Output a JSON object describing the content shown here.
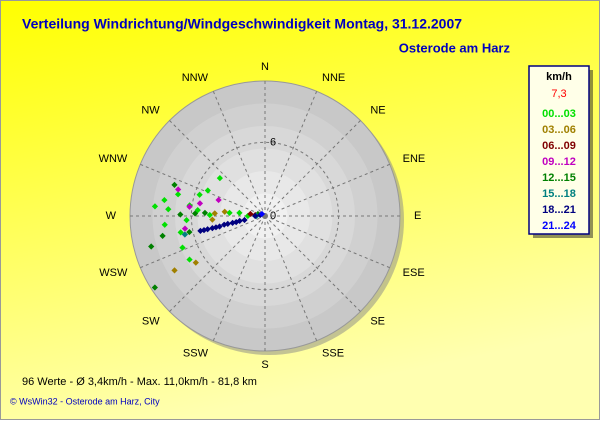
{
  "chart_data": {
    "type": "polar-scatter",
    "title": "Verteilung Windrichtung/Windgeschwindigkeit  Montag, 31.12.2007",
    "subtitle": "Osterode am Harz",
    "directions": [
      "N",
      "NNE",
      "NE",
      "ENE",
      "E",
      "ESE",
      "SE",
      "SSE",
      "S",
      "SSW",
      "SW",
      "WSW",
      "W",
      "WNW",
      "NW",
      "NNW"
    ],
    "rlim": [
      0,
      11
    ],
    "rticks": [
      0,
      6
    ],
    "legend_title": "km/h",
    "legend_value": "7,3",
    "series": [
      {
        "name": "00...03",
        "color": "#00e000",
        "theta": [
          310,
          294,
          288,
          278,
          275,
          271,
          267,
          259,
          274,
          284,
          279,
          275,
          249,
          240,
          265,
          275,
          277,
          270
        ],
        "r": [
          4.8,
          5.1,
          5.6,
          6.2,
          5.5,
          4.5,
          6.4,
          7.0,
          7.9,
          7.3,
          8.3,
          9.0,
          7.2,
          7.1,
          8.2,
          2.9,
          2.1,
          1.4
        ]
      },
      {
        "name": "03...06",
        "color": "#a08000",
        "theta": [
          239,
          276,
          273,
          236,
          266
        ],
        "r": [
          8.6,
          3.3,
          4.1,
          6.8,
          4.3
        ]
      },
      {
        "name": "06...09",
        "color": "#800000",
        "theta": [
          276,
          278
        ],
        "r": [
          0.8,
          1.2
        ]
      },
      {
        "name": "09...12",
        "color": "#c000c0",
        "theta": [
          287,
          261,
          281,
          289,
          277
        ],
        "r": [
          7.4,
          6.6,
          5.4,
          4.0,
          6.2
        ]
      },
      {
        "name": "12...15",
        "color": "#008000",
        "theta": [
          237,
          255,
          272,
          273,
          258,
          259,
          271,
          289,
          286
        ],
        "r": [
          10.7,
          9.6,
          5.7,
          4.9,
          6.3,
          8.5,
          6.9,
          7.8,
          0.6
        ]
      },
      {
        "name": "15...18",
        "color": "#008080",
        "theta": [
          257,
          270
        ],
        "r": [
          6.7,
          0.7
        ]
      },
      {
        "name": "18...21",
        "color": "#000080",
        "theta": [
          257,
          257,
          257,
          257,
          257,
          257,
          258,
          258,
          258,
          258,
          259,
          259,
          270,
          281
        ],
        "r": [
          5.4,
          5.1,
          4.8,
          4.4,
          4.1,
          3.8,
          3.4,
          3.1,
          2.7,
          2.4,
          2.1,
          1.7,
          0.8,
          0.4
        ]
      },
      {
        "name": "21...24",
        "color": "#0000ff",
        "theta": [
          304
        ],
        "r": [
          0.3
        ]
      }
    ]
  },
  "footer": {
    "stats": "96 Werte   -   Ø 3,4km/h   -   Max. 11,0km/h   -   81,8 km",
    "credit": "© WsWin32   -   Osterode am Harz, City"
  }
}
